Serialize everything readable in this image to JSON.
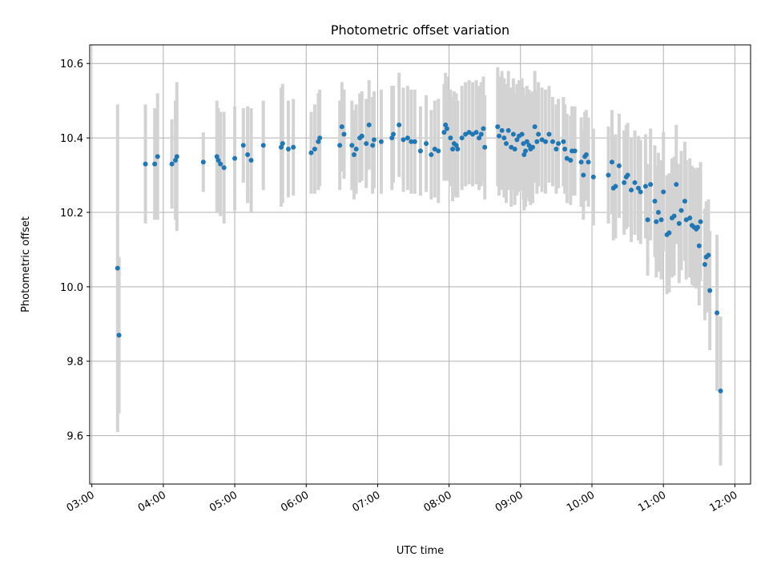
{
  "chart_data": {
    "type": "scatter",
    "title": "Photometric offset variation",
    "xlabel": "UTC time",
    "ylabel": "Photometric offset",
    "xlim": [
      2.97,
      12.22
    ],
    "ylim": [
      9.47,
      10.65
    ],
    "x_ticks": [
      3,
      4,
      5,
      6,
      7,
      8,
      9,
      10,
      11,
      12
    ],
    "x_tick_labels": [
      "03:00",
      "04:00",
      "05:00",
      "06:00",
      "07:00",
      "08:00",
      "09:00",
      "10:00",
      "11:00",
      "12:00"
    ],
    "y_ticks": [
      9.6,
      9.8,
      10.0,
      10.2,
      10.4,
      10.6
    ],
    "y_tick_labels": [
      "9.6",
      "9.8",
      "10.0",
      "10.2",
      "10.4",
      "10.6"
    ],
    "grid": true,
    "marker_color": "#1f77b4",
    "errorbar_color": "#d3d3d3",
    "series": [
      {
        "x_unit": "hours UTC",
        "points": [
          [
            3.36,
            10.05,
            0.44
          ],
          [
            3.38,
            9.87,
            0.21
          ],
          [
            3.75,
            10.33,
            0.16
          ],
          [
            3.88,
            10.33,
            0.15
          ],
          [
            3.92,
            10.35,
            0.17
          ],
          [
            4.12,
            10.33,
            0.12
          ],
          [
            4.17,
            10.34,
            0.16
          ],
          [
            4.19,
            10.35,
            0.2
          ],
          [
            4.56,
            10.335,
            0.08
          ],
          [
            4.75,
            10.35,
            0.15
          ],
          [
            4.77,
            10.34,
            0.14
          ],
          [
            4.8,
            10.33,
            0.14
          ],
          [
            4.85,
            10.32,
            0.15
          ],
          [
            5.0,
            10.345,
            0.14
          ],
          [
            5.12,
            10.38,
            0.1
          ],
          [
            5.18,
            10.355,
            0.13
          ],
          [
            5.23,
            10.34,
            0.14
          ],
          [
            5.4,
            10.38,
            0.12
          ],
          [
            5.65,
            10.375,
            0.16
          ],
          [
            5.67,
            10.385,
            0.16
          ],
          [
            5.75,
            10.37,
            0.13
          ],
          [
            5.82,
            10.375,
            0.13
          ],
          [
            6.07,
            10.36,
            0.11
          ],
          [
            6.12,
            10.37,
            0.12
          ],
          [
            6.17,
            10.39,
            0.13
          ],
          [
            6.19,
            10.4,
            0.13
          ],
          [
            6.47,
            10.38,
            0.12
          ],
          [
            6.5,
            10.43,
            0.12
          ],
          [
            6.53,
            10.41,
            0.12
          ],
          [
            6.64,
            10.38,
            0.12
          ],
          [
            6.67,
            10.355,
            0.12
          ],
          [
            6.7,
            10.37,
            0.12
          ],
          [
            6.75,
            10.4,
            0.12
          ],
          [
            6.78,
            10.405,
            0.12
          ],
          [
            6.84,
            10.385,
            0.12
          ],
          [
            6.88,
            10.435,
            0.12
          ],
          [
            6.93,
            10.38,
            0.13
          ],
          [
            6.95,
            10.395,
            0.13
          ],
          [
            7.05,
            10.39,
            0.14
          ],
          [
            7.2,
            10.4,
            0.14
          ],
          [
            7.22,
            10.41,
            0.13
          ],
          [
            7.3,
            10.435,
            0.14
          ],
          [
            7.36,
            10.395,
            0.14
          ],
          [
            7.42,
            10.4,
            0.14
          ],
          [
            7.47,
            10.39,
            0.14
          ],
          [
            7.52,
            10.39,
            0.14
          ],
          [
            7.6,
            10.365,
            0.12
          ],
          [
            7.68,
            10.385,
            0.13
          ],
          [
            7.75,
            10.355,
            0.12
          ],
          [
            7.8,
            10.37,
            0.13
          ],
          [
            7.85,
            10.365,
            0.14
          ],
          [
            7.93,
            10.415,
            0.13
          ],
          [
            7.95,
            10.435,
            0.14
          ],
          [
            7.97,
            10.425,
            0.14
          ],
          [
            8.02,
            10.4,
            0.13
          ],
          [
            8.05,
            10.37,
            0.14
          ],
          [
            8.07,
            10.385,
            0.14
          ],
          [
            8.1,
            10.38,
            0.14
          ],
          [
            8.12,
            10.37,
            0.13
          ],
          [
            8.18,
            10.4,
            0.14
          ],
          [
            8.23,
            10.41,
            0.14
          ],
          [
            8.28,
            10.415,
            0.14
          ],
          [
            8.33,
            10.41,
            0.14
          ],
          [
            8.38,
            10.415,
            0.14
          ],
          [
            8.42,
            10.4,
            0.14
          ],
          [
            8.45,
            10.41,
            0.14
          ],
          [
            8.48,
            10.425,
            0.14
          ],
          [
            8.5,
            10.375,
            0.14
          ],
          [
            8.68,
            10.43,
            0.16
          ],
          [
            8.7,
            10.405,
            0.16
          ],
          [
            8.74,
            10.42,
            0.16
          ],
          [
            8.77,
            10.4,
            0.16
          ],
          [
            8.8,
            10.385,
            0.16
          ],
          [
            8.83,
            10.42,
            0.16
          ],
          [
            8.87,
            10.375,
            0.16
          ],
          [
            8.9,
            10.41,
            0.15
          ],
          [
            8.92,
            10.37,
            0.15
          ],
          [
            8.95,
            10.395,
            0.15
          ],
          [
            8.98,
            10.405,
            0.15
          ],
          [
            9.02,
            10.41,
            0.15
          ],
          [
            9.04,
            10.385,
            0.15
          ],
          [
            9.05,
            10.355,
            0.15
          ],
          [
            9.07,
            10.365,
            0.15
          ],
          [
            9.09,
            10.39,
            0.15
          ],
          [
            9.12,
            10.38,
            0.15
          ],
          [
            9.14,
            10.37,
            0.15
          ],
          [
            9.17,
            10.375,
            0.15
          ],
          [
            9.2,
            10.43,
            0.15
          ],
          [
            9.23,
            10.39,
            0.14
          ],
          [
            9.25,
            10.41,
            0.14
          ],
          [
            9.3,
            10.395,
            0.14
          ],
          [
            9.35,
            10.39,
            0.14
          ],
          [
            9.4,
            10.41,
            0.13
          ],
          [
            9.45,
            10.39,
            0.12
          ],
          [
            9.5,
            10.37,
            0.12
          ],
          [
            9.53,
            10.385,
            0.12
          ],
          [
            9.6,
            10.39,
            0.12
          ],
          [
            9.62,
            10.37,
            0.12
          ],
          [
            9.65,
            10.345,
            0.12
          ],
          [
            9.7,
            10.34,
            0.12
          ],
          [
            9.72,
            10.365,
            0.12
          ],
          [
            9.76,
            10.365,
            0.12
          ],
          [
            9.85,
            10.335,
            0.12
          ],
          [
            9.88,
            10.3,
            0.12
          ],
          [
            9.9,
            10.35,
            0.12
          ],
          [
            9.92,
            10.355,
            0.12
          ],
          [
            9.95,
            10.335,
            0.12
          ],
          [
            10.02,
            10.295,
            0.13
          ],
          [
            10.23,
            10.3,
            0.13
          ],
          [
            10.28,
            10.335,
            0.14
          ],
          [
            10.3,
            10.265,
            0.14
          ],
          [
            10.33,
            10.27,
            0.14
          ],
          [
            10.38,
            10.325,
            0.14
          ],
          [
            10.45,
            10.28,
            0.14
          ],
          [
            10.48,
            10.295,
            0.14
          ],
          [
            10.5,
            10.3,
            0.14
          ],
          [
            10.55,
            10.26,
            0.14
          ],
          [
            10.6,
            10.28,
            0.14
          ],
          [
            10.65,
            10.265,
            0.14
          ],
          [
            10.68,
            10.255,
            0.14
          ],
          [
            10.75,
            10.27,
            0.14
          ],
          [
            10.78,
            10.18,
            0.15
          ],
          [
            10.82,
            10.275,
            0.15
          ],
          [
            10.88,
            10.23,
            0.15
          ],
          [
            10.9,
            10.175,
            0.15
          ],
          [
            10.93,
            10.2,
            0.16
          ],
          [
            10.97,
            10.18,
            0.16
          ],
          [
            11.0,
            10.255,
            0.16
          ],
          [
            11.05,
            10.14,
            0.16
          ],
          [
            11.08,
            10.145,
            0.16
          ],
          [
            11.12,
            10.185,
            0.16
          ],
          [
            11.15,
            10.19,
            0.16
          ],
          [
            11.18,
            10.275,
            0.16
          ],
          [
            11.22,
            10.17,
            0.16
          ],
          [
            11.25,
            10.205,
            0.16
          ],
          [
            11.3,
            10.23,
            0.16
          ],
          [
            11.32,
            10.18,
            0.16
          ],
          [
            11.37,
            10.185,
            0.16
          ],
          [
            11.4,
            10.165,
            0.16
          ],
          [
            11.43,
            10.16,
            0.16
          ],
          [
            11.46,
            10.155,
            0.16
          ],
          [
            11.48,
            10.16,
            0.16
          ],
          [
            11.5,
            10.11,
            0.16
          ],
          [
            11.52,
            10.175,
            0.16
          ],
          [
            11.58,
            10.06,
            0.15
          ],
          [
            11.6,
            10.08,
            0.15
          ],
          [
            11.63,
            10.085,
            0.15
          ],
          [
            11.65,
            9.99,
            0.16
          ],
          [
            11.75,
            9.93,
            0.21
          ],
          [
            11.8,
            9.72,
            0.2
          ]
        ]
      }
    ]
  }
}
